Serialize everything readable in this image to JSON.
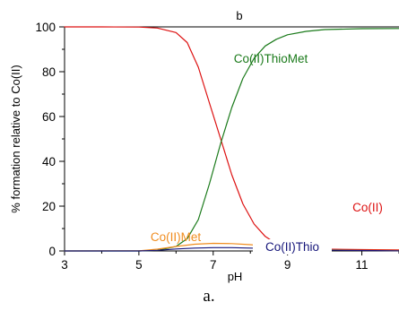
{
  "chart_data": {
    "type": "line",
    "title": "b",
    "xlabel": "pH",
    "ylabel": "% formation relative to Co(II)",
    "caption": "a.",
    "xlim": [
      3,
      12
    ],
    "ylim": [
      0,
      100
    ],
    "x_ticks": [
      3,
      5,
      7,
      9,
      11
    ],
    "x_tick_labels": [
      "3",
      "5",
      "7",
      "9",
      "11"
    ],
    "y_ticks": [
      0,
      20,
      40,
      60,
      80,
      100
    ],
    "y_tick_labels": [
      "0",
      "20",
      "40",
      "60",
      "80",
      "100"
    ],
    "grid": false,
    "legend": "none",
    "series": [
      {
        "name": "Co(II)",
        "color": "#dd1111",
        "x": [
          3,
          4,
          5,
          5.5,
          6,
          6.3,
          6.6,
          6.9,
          7.2,
          7.5,
          7.8,
          8.1,
          8.4,
          8.7,
          9,
          10,
          11,
          12
        ],
        "y": [
          100,
          100,
          99.9,
          99.5,
          97.5,
          93,
          82,
          66,
          50,
          34,
          21,
          12,
          6.5,
          3.2,
          1.8,
          0.8,
          0.6,
          0.5
        ]
      },
      {
        "name": "Co(II)ThioMet",
        "color": "#1a7a1a",
        "x": [
          3,
          5,
          5.5,
          6,
          6.3,
          6.6,
          6.9,
          7.2,
          7.5,
          7.8,
          8.1,
          8.4,
          8.7,
          9,
          9.5,
          10,
          11,
          12
        ],
        "y": [
          0,
          0,
          0.3,
          2,
          5.5,
          14,
          30,
          48,
          64,
          77,
          86,
          91.5,
          94.5,
          96.5,
          98,
          98.8,
          99.2,
          99.3
        ]
      },
      {
        "name": "Co(II)Met",
        "color": "#f08c1e",
        "x": [
          3,
          5,
          5.5,
          6,
          6.5,
          7,
          7.5,
          8,
          8.5,
          9,
          9.5,
          10,
          11,
          12
        ],
        "y": [
          0,
          0.1,
          0.8,
          2,
          3,
          3.4,
          3.3,
          2.8,
          2.1,
          1.4,
          0.9,
          0.6,
          0.3,
          0.2
        ]
      },
      {
        "name": "Co(II)Thio",
        "color": "#15157a",
        "x": [
          3,
          5,
          5.5,
          6,
          6.5,
          7,
          7.5,
          8,
          8.5,
          9,
          9.5,
          10,
          11,
          12
        ],
        "y": [
          0,
          0,
          0.3,
          0.9,
          1.3,
          1.5,
          1.5,
          1.3,
          1.1,
          0.8,
          0.6,
          0.4,
          0.2,
          0.1
        ]
      }
    ]
  }
}
